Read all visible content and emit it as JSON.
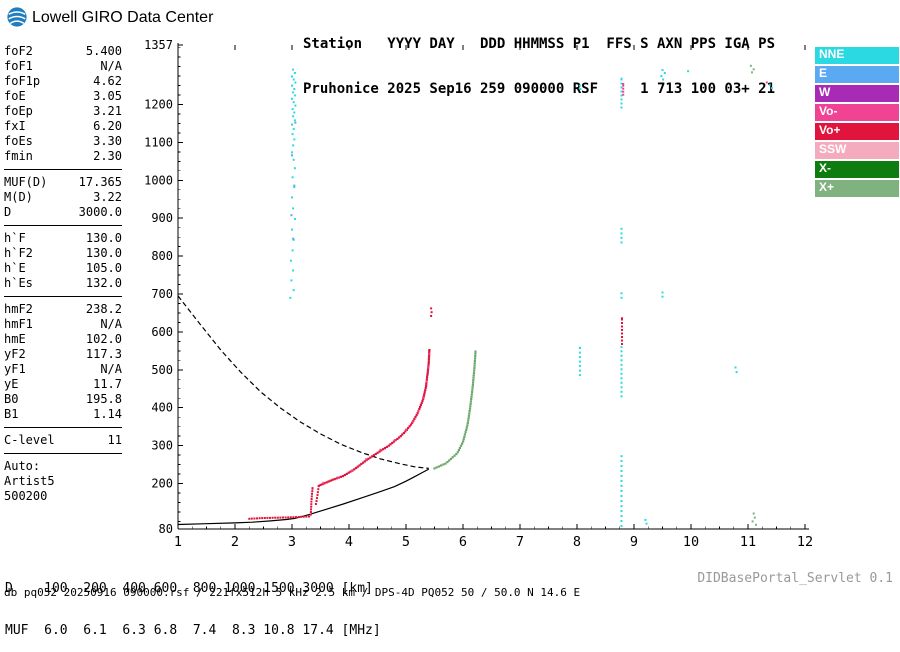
{
  "brand": {
    "title": "Lowell GIRO Data Center"
  },
  "header": {
    "line1": "Station   YYYY DAY   DDD HHMMSS P1  FFS S AXN PPS IGA PS",
    "line2": "Pruhonice 2025 Sep16 259 090000 RSF     1 713 100 03+ 21"
  },
  "left_panel": {
    "groups": [
      {
        "rows": [
          [
            "foF2",
            "5.400"
          ],
          [
            "foF1",
            "N/A"
          ],
          [
            "foF1p",
            "4.62"
          ],
          [
            "foE",
            "3.05"
          ],
          [
            "foEp",
            "3.21"
          ],
          [
            "fxI",
            "6.20"
          ],
          [
            "foEs",
            "3.30"
          ],
          [
            "fmin",
            "2.30"
          ]
        ]
      },
      {
        "rows": [
          [
            "MUF(D)",
            "17.365"
          ],
          [
            "M(D)",
            "3.22"
          ],
          [
            "D",
            "3000.0"
          ]
        ]
      },
      {
        "rows": [
          [
            "h`F",
            "130.0"
          ],
          [
            "h`F2",
            "130.0"
          ],
          [
            "h`E",
            "105.0"
          ],
          [
            "h`Es",
            "132.0"
          ]
        ]
      },
      {
        "rows": [
          [
            "hmF2",
            "238.2"
          ],
          [
            "hmF1",
            "N/A"
          ],
          [
            "hmE",
            "102.0"
          ],
          [
            "yF2",
            "117.3"
          ],
          [
            "yF1",
            "N/A"
          ],
          [
            "yE",
            "11.7"
          ],
          [
            "B0",
            "195.8"
          ],
          [
            "B1",
            "1.14"
          ]
        ]
      },
      {
        "rows": [
          [
            "C-level",
            "11"
          ]
        ]
      },
      {
        "rows": [
          [
            "Auto:",
            ""
          ],
          [
            "Artist5",
            ""
          ],
          [
            "500200",
            ""
          ]
        ]
      }
    ]
  },
  "legend": {
    "items": [
      {
        "label": "NNE",
        "color": "#2BD9E3"
      },
      {
        "label": "E",
        "color": "#5AA9F2"
      },
      {
        "label": "W",
        "color": "#A82BB5"
      },
      {
        "label": "Vo-",
        "color": "#F04394"
      },
      {
        "label": "Vo+",
        "color": "#E0143C"
      },
      {
        "label": "SSW",
        "color": "#F5ABBE"
      },
      {
        "label": "X-",
        "color": "#0F7C0F"
      },
      {
        "label": "X+",
        "color": "#7FB27F"
      }
    ]
  },
  "footer": {
    "d_row_text": "D    100  200  400 600  800 1000 1500 3000 [km]",
    "muf_row_text": "MUF  6.0  6.1  6.3 6.8  7.4  8.3 10.8 17.4 [MHz]",
    "d_values": [
      "100",
      "200",
      "400",
      "600",
      "800",
      "1000",
      "1500",
      "3000"
    ],
    "muf_values": [
      "6.0",
      "6.1",
      "6.3",
      "6.8",
      "7.4",
      "8.3",
      "10.8",
      "17.4"
    ],
    "status": "db pq052 20250916 090000.rsf / 221fx512h 5 kHz 2.5 km / DPS-4D PQ052 50 / 50.0 N 14.6 E",
    "servlet": "DIDBasePortal_Servlet 0.1"
  },
  "chart_data": {
    "type": "scatter",
    "xlabel": "[MHz]",
    "ylabel": "[km]",
    "xlim": [
      1,
      12
    ],
    "ylim": [
      80,
      1357
    ],
    "x_ticks": [
      1,
      2,
      3,
      4,
      5,
      6,
      7,
      8,
      9,
      10,
      11,
      12
    ],
    "y_ticks": [
      80,
      200,
      300,
      400,
      500,
      600,
      700,
      800,
      900,
      1000,
      1100,
      1200,
      1357
    ],
    "grid": "off",
    "legend_position": "outside-right",
    "profiles": [
      {
        "name": "true-height-profile",
        "style": "solid",
        "color": "#000000",
        "points": [
          [
            1.0,
            92
          ],
          [
            1.5,
            94
          ],
          [
            2.0,
            96
          ],
          [
            2.3,
            98
          ],
          [
            2.6,
            101
          ],
          [
            2.9,
            105
          ],
          [
            3.05,
            108
          ],
          [
            3.3,
            118
          ],
          [
            3.6,
            132
          ],
          [
            3.9,
            146
          ],
          [
            4.2,
            161
          ],
          [
            4.5,
            176
          ],
          [
            4.8,
            192
          ],
          [
            5.0,
            206
          ],
          [
            5.15,
            218
          ],
          [
            5.3,
            230
          ],
          [
            5.4,
            238
          ]
        ]
      },
      {
        "name": "topside-extrapolation",
        "style": "dashed",
        "color": "#000000",
        "points": [
          [
            1.0,
            695
          ],
          [
            1.4,
            618
          ],
          [
            1.75,
            552
          ],
          [
            2.1,
            494
          ],
          [
            2.45,
            442
          ],
          [
            2.8,
            399
          ],
          [
            3.15,
            362
          ],
          [
            3.5,
            331
          ],
          [
            3.85,
            304
          ],
          [
            4.2,
            283
          ],
          [
            4.55,
            265
          ],
          [
            4.9,
            252
          ],
          [
            5.15,
            244
          ],
          [
            5.4,
            240
          ]
        ]
      }
    ],
    "series": [
      {
        "name": "noise-3mhz",
        "color": "#2BD9E3",
        "mode": "scatter",
        "size": 2,
        "points": [
          [
            3.02,
            1292
          ],
          [
            3.05,
            1283
          ],
          [
            3.0,
            1274
          ],
          [
            3.03,
            1266
          ],
          [
            3.06,
            1258
          ],
          [
            3.0,
            1250
          ],
          [
            3.04,
            1241
          ],
          [
            3.02,
            1232
          ],
          [
            3.05,
            1224
          ],
          [
            3.0,
            1215
          ],
          [
            3.03,
            1206
          ],
          [
            3.06,
            1197
          ],
          [
            3.01,
            1188
          ],
          [
            3.04,
            1179
          ],
          [
            3.02,
            1169
          ],
          [
            3.05,
            1158
          ],
          [
            3.0,
            1147
          ],
          [
            3.03,
            1135
          ],
          [
            3.01,
            1122
          ],
          [
            3.04,
            1108
          ],
          [
            3.02,
            1092
          ],
          [
            3.0,
            1074
          ],
          [
            3.03,
            1054
          ],
          [
            3.05,
            1032
          ],
          [
            3.01,
            1008
          ],
          [
            3.04,
            982
          ],
          [
            3.0,
            955
          ],
          [
            3.02,
            926
          ],
          [
            3.05,
            898
          ],
          [
            3.0,
            870
          ],
          [
            3.03,
            843
          ],
          [
            3.01,
            815
          ],
          [
            2.98,
            788
          ],
          [
            3.02,
            762
          ],
          [
            2.99,
            736
          ],
          [
            3.03,
            710
          ],
          [
            2.97,
            690
          ]
        ]
      },
      {
        "name": "noise-3mhz-blue",
        "color": "#5AA9F2",
        "mode": "scatter",
        "size": 2,
        "points": [
          [
            3.06,
            1152
          ],
          [
            3.0,
            1066
          ],
          [
            3.04,
            986
          ],
          [
            2.99,
            908
          ],
          [
            3.02,
            846
          ]
        ]
      },
      {
        "name": "noise-8-8mhz-top",
        "color": "#2BD9E3",
        "mode": "trace",
        "step": 4,
        "size": 2,
        "points": [
          [
            8.78,
            1192
          ],
          [
            8.78,
            1268
          ]
        ]
      },
      {
        "name": "noise-8-8mhz-top-pink",
        "color": "#F04394",
        "mode": "trace",
        "step": 3,
        "size": 2,
        "points": [
          [
            8.81,
            1226
          ],
          [
            8.81,
            1254
          ]
        ]
      },
      {
        "name": "noise-8-8mhz-mid",
        "color": "#2BD9E3",
        "mode": "scatter",
        "size": 2,
        "points": [
          [
            8.78,
            872
          ],
          [
            8.78,
            860
          ],
          [
            8.78,
            848
          ],
          [
            8.78,
            836
          ],
          [
            8.78,
            702
          ],
          [
            8.78,
            690
          ]
        ]
      },
      {
        "name": "noise-8-8mhz-red",
        "color": "#E0143C",
        "mode": "trace",
        "step": 3.5,
        "size": 2,
        "points": [
          [
            8.79,
            568
          ],
          [
            8.79,
            636
          ]
        ]
      },
      {
        "name": "noise-8-8mhz-low",
        "color": "#2BD9E3",
        "mode": "trace",
        "step": 4.5,
        "size": 2,
        "points": [
          [
            8.78,
            430
          ],
          [
            8.78,
            560
          ]
        ]
      },
      {
        "name": "noise-8-8mhz-bottom",
        "color": "#2BD9E3",
        "mode": "trace",
        "step": 5,
        "size": 2,
        "points": [
          [
            8.78,
            88
          ],
          [
            8.78,
            272
          ]
        ]
      },
      {
        "name": "noise-8mhz",
        "color": "#2BD9E3",
        "mode": "trace",
        "step": 4.5,
        "size": 2,
        "points": [
          [
            8.05,
            486
          ],
          [
            8.05,
            558
          ]
        ]
      },
      {
        "name": "noise-8mhz-top",
        "color": "#2BD9E3",
        "mode": "scatter",
        "size": 2,
        "points": [
          [
            8.05,
            1250
          ],
          [
            8.06,
            1241
          ]
        ]
      },
      {
        "name": "noise-9-5mhz",
        "color": "#2BD9E3",
        "mode": "scatter",
        "size": 2,
        "points": [
          [
            9.5,
            1291
          ],
          [
            9.54,
            1283
          ],
          [
            9.48,
            1275
          ],
          [
            9.51,
            1266
          ],
          [
            9.5,
            704
          ],
          [
            9.5,
            693
          ],
          [
            9.2,
            104
          ],
          [
            9.22,
            94
          ]
        ]
      },
      {
        "name": "noise-11mhz-green",
        "color": "#7FB27F",
        "mode": "scatter",
        "size": 2,
        "points": [
          [
            11.05,
            1302
          ],
          [
            11.1,
            1293
          ],
          [
            11.07,
            1285
          ],
          [
            11.1,
            121
          ],
          [
            11.12,
            110
          ],
          [
            11.08,
            100
          ],
          [
            11.14,
            91
          ]
        ]
      },
      {
        "name": "noise-misc-cyan",
        "color": "#2BD9E3",
        "mode": "scatter",
        "size": 2,
        "points": [
          [
            10.78,
            506
          ],
          [
            10.8,
            494
          ],
          [
            11.38,
            1252
          ],
          [
            11.42,
            1243
          ],
          [
            9.95,
            1288
          ]
        ]
      },
      {
        "name": "noise-misc-pink",
        "color": "#F04394",
        "mode": "scatter",
        "size": 2,
        "points": [
          [
            11.33,
            1258
          ]
        ]
      },
      {
        "name": "echo-second-reflection",
        "color": "#E0143C",
        "mode": "scatter",
        "size": 2,
        "points": [
          [
            5.44,
            662
          ],
          [
            5.45,
            652
          ],
          [
            5.44,
            642
          ]
        ]
      },
      {
        "name": "es-trace",
        "color": "#E0143C",
        "mode": "trace",
        "step": 2.6,
        "size": 2,
        "points": [
          [
            2.25,
            107
          ],
          [
            2.5,
            109
          ],
          [
            2.8,
            110
          ],
          [
            3.0,
            111
          ],
          [
            3.15,
            112
          ],
          [
            3.3,
            113
          ]
        ]
      },
      {
        "name": "es-cusp",
        "color": "#E0143C",
        "mode": "trace",
        "step": 2.6,
        "size": 2,
        "points": [
          [
            3.33,
            118
          ],
          [
            3.34,
            152
          ],
          [
            3.36,
            188
          ]
        ]
      },
      {
        "name": "es-cusp-2",
        "color": "#E0143C",
        "mode": "trace",
        "step": 3,
        "size": 2,
        "points": [
          [
            3.42,
            146
          ],
          [
            3.45,
            172
          ],
          [
            3.47,
            194
          ]
        ]
      },
      {
        "name": "f-trace-o",
        "color": "#E0143C",
        "mode": "trace",
        "step": 2.2,
        "size": 2.2,
        "points": [
          [
            3.5,
            196
          ],
          [
            3.7,
            209
          ],
          [
            3.9,
            220
          ],
          [
            4.1,
            238
          ],
          [
            4.3,
            261
          ],
          [
            4.5,
            281
          ],
          [
            4.7,
            300
          ],
          [
            4.9,
            324
          ],
          [
            5.0,
            339
          ],
          [
            5.1,
            358
          ],
          [
            5.2,
            384
          ],
          [
            5.3,
            422
          ],
          [
            5.35,
            455
          ],
          [
            5.38,
            492
          ],
          [
            5.4,
            520
          ],
          [
            5.41,
            552
          ]
        ]
      },
      {
        "name": "f-trace-doppler-neg",
        "color": "#F04394",
        "mode": "scatter",
        "size": 2,
        "points": [
          [
            3.55,
            202
          ],
          [
            3.8,
            216
          ],
          [
            4.05,
            233
          ],
          [
            4.3,
            264
          ],
          [
            4.55,
            289
          ],
          [
            4.8,
            314
          ],
          [
            5.0,
            342
          ],
          [
            5.12,
            363
          ],
          [
            5.22,
            391
          ],
          [
            5.3,
            426
          ],
          [
            5.36,
            470
          ],
          [
            5.39,
            506
          ],
          [
            5.41,
            542
          ]
        ]
      },
      {
        "name": "x-trace",
        "color": "#69A869",
        "mode": "trace",
        "step": 2.4,
        "size": 2.2,
        "points": [
          [
            5.5,
            240
          ],
          [
            5.7,
            253
          ],
          [
            5.9,
            280
          ],
          [
            6.0,
            310
          ],
          [
            6.08,
            355
          ],
          [
            6.13,
            405
          ],
          [
            6.17,
            455
          ],
          [
            6.2,
            505
          ],
          [
            6.22,
            548
          ]
        ]
      }
    ]
  }
}
